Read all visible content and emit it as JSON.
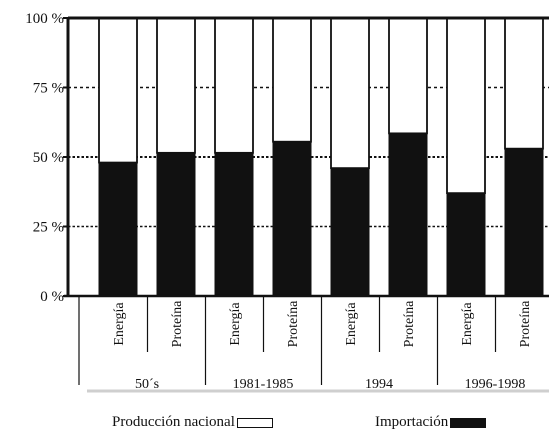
{
  "chart_data": {
    "type": "bar",
    "stacked_percent": true,
    "groups": [
      "50´s",
      "1981-1985",
      "1994",
      "1996-1998"
    ],
    "categories": [
      "Energía",
      "Proteína",
      "Energía",
      "Proteína",
      "Energía",
      "Proteína",
      "Energía",
      "Proteína"
    ],
    "ylim": [
      0,
      100
    ],
    "yticks": [
      "0 %",
      "25 %",
      "50 %",
      "75 %",
      "100 %"
    ],
    "series": [
      {
        "name": "Importación",
        "color": "#111111",
        "values": [
          48,
          51.5,
          51.5,
          55.5,
          46,
          58.5,
          37,
          53
        ]
      },
      {
        "name": "Producción nacional",
        "color": "#ffffff",
        "values": [
          52,
          48.5,
          48.5,
          44.5,
          54,
          41.5,
          63,
          47
        ]
      }
    ],
    "grid": true
  },
  "legend": {
    "produccion_label": "Producción nacional",
    "importacion_label": "Importación"
  }
}
